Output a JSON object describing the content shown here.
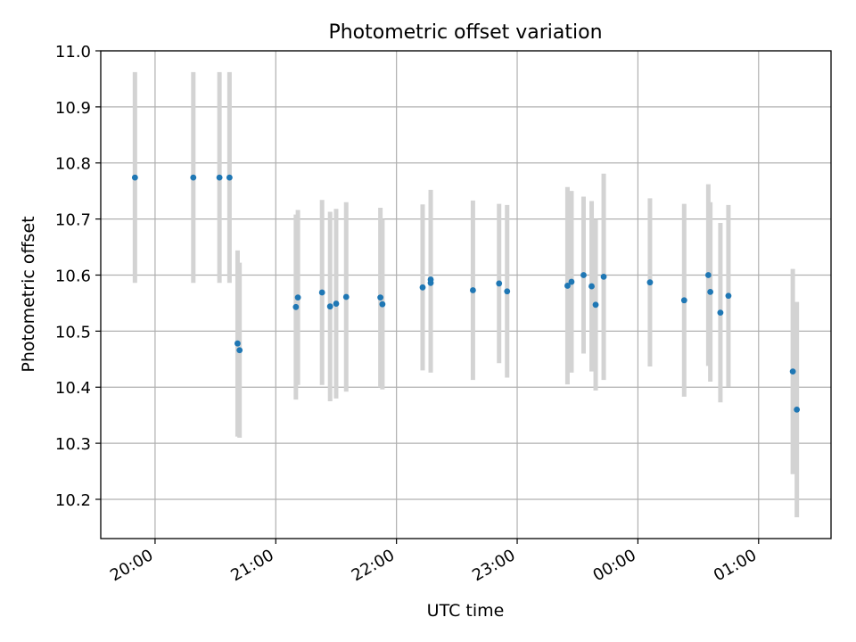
{
  "chart_data": {
    "type": "scatter",
    "title": "Photometric offset variation",
    "xlabel": "UTC time",
    "ylabel": "Photometric offset",
    "ylim": [
      10.13,
      11.0
    ],
    "xlim": [
      "19:33",
      "01:36"
    ],
    "x_ticks": [
      "20:00",
      "21:00",
      "22:00",
      "23:00",
      "00:00",
      "01:00"
    ],
    "y_ticks": [
      "10.2",
      "10.3",
      "10.4",
      "10.5",
      "10.6",
      "10.7",
      "10.8",
      "10.9",
      "11.0"
    ],
    "grid": true,
    "colors": {
      "points": "#1f77b4",
      "errorbars": "#d3d3d3",
      "grid": "#b0b0b0"
    },
    "points": [
      {
        "x": "19:50",
        "y": 10.774,
        "yerr": 0.188
      },
      {
        "x": "20:19",
        "y": 10.774,
        "yerr": 0.188
      },
      {
        "x": "20:32",
        "y": 10.774,
        "yerr": 0.188
      },
      {
        "x": "20:37",
        "y": 10.774,
        "yerr": 0.188
      },
      {
        "x": "20:41",
        "y": 10.478,
        "yerr": 0.166
      },
      {
        "x": "20:42",
        "y": 10.466,
        "yerr": 0.156
      },
      {
        "x": "21:10",
        "y": 10.543,
        "yerr": 0.165
      },
      {
        "x": "21:11",
        "y": 10.56,
        "yerr": 0.156
      },
      {
        "x": "21:23",
        "y": 10.569,
        "yerr": 0.165
      },
      {
        "x": "21:27",
        "y": 10.544,
        "yerr": 0.169
      },
      {
        "x": "21:30",
        "y": 10.549,
        "yerr": 0.169
      },
      {
        "x": "21:35",
        "y": 10.561,
        "yerr": 0.169
      },
      {
        "x": "21:52",
        "y": 10.56,
        "yerr": 0.16
      },
      {
        "x": "21:53",
        "y": 10.548,
        "yerr": 0.152
      },
      {
        "x": "22:13",
        "y": 10.578,
        "yerr": 0.148
      },
      {
        "x": "22:17",
        "y": 10.586,
        "yerr": 0.16
      },
      {
        "x": "22:17",
        "y": 10.592,
        "yerr": 0.16
      },
      {
        "x": "22:38",
        "y": 10.573,
        "yerr": 0.16
      },
      {
        "x": "22:51",
        "y": 10.585,
        "yerr": 0.142
      },
      {
        "x": "22:55",
        "y": 10.571,
        "yerr": 0.154
      },
      {
        "x": "23:25",
        "y": 10.581,
        "yerr": 0.176
      },
      {
        "x": "23:27",
        "y": 10.588,
        "yerr": 0.162
      },
      {
        "x": "23:33",
        "y": 10.6,
        "yerr": 0.14
      },
      {
        "x": "23:37",
        "y": 10.58,
        "yerr": 0.152
      },
      {
        "x": "23:39",
        "y": 10.547,
        "yerr": 0.153
      },
      {
        "x": "23:43",
        "y": 10.597,
        "yerr": 0.184
      },
      {
        "x": "00:06",
        "y": 10.587,
        "yerr": 0.15
      },
      {
        "x": "00:23",
        "y": 10.555,
        "yerr": 0.172
      },
      {
        "x": "00:35",
        "y": 10.6,
        "yerr": 0.162
      },
      {
        "x": "00:36",
        "y": 10.57,
        "yerr": 0.16
      },
      {
        "x": "00:41",
        "y": 10.533,
        "yerr": 0.16
      },
      {
        "x": "00:45",
        "y": 10.563,
        "yerr": 0.162
      },
      {
        "x": "01:17",
        "y": 10.428,
        "yerr": 0.183
      },
      {
        "x": "01:19",
        "y": 10.36,
        "yerr": 0.192
      }
    ]
  }
}
